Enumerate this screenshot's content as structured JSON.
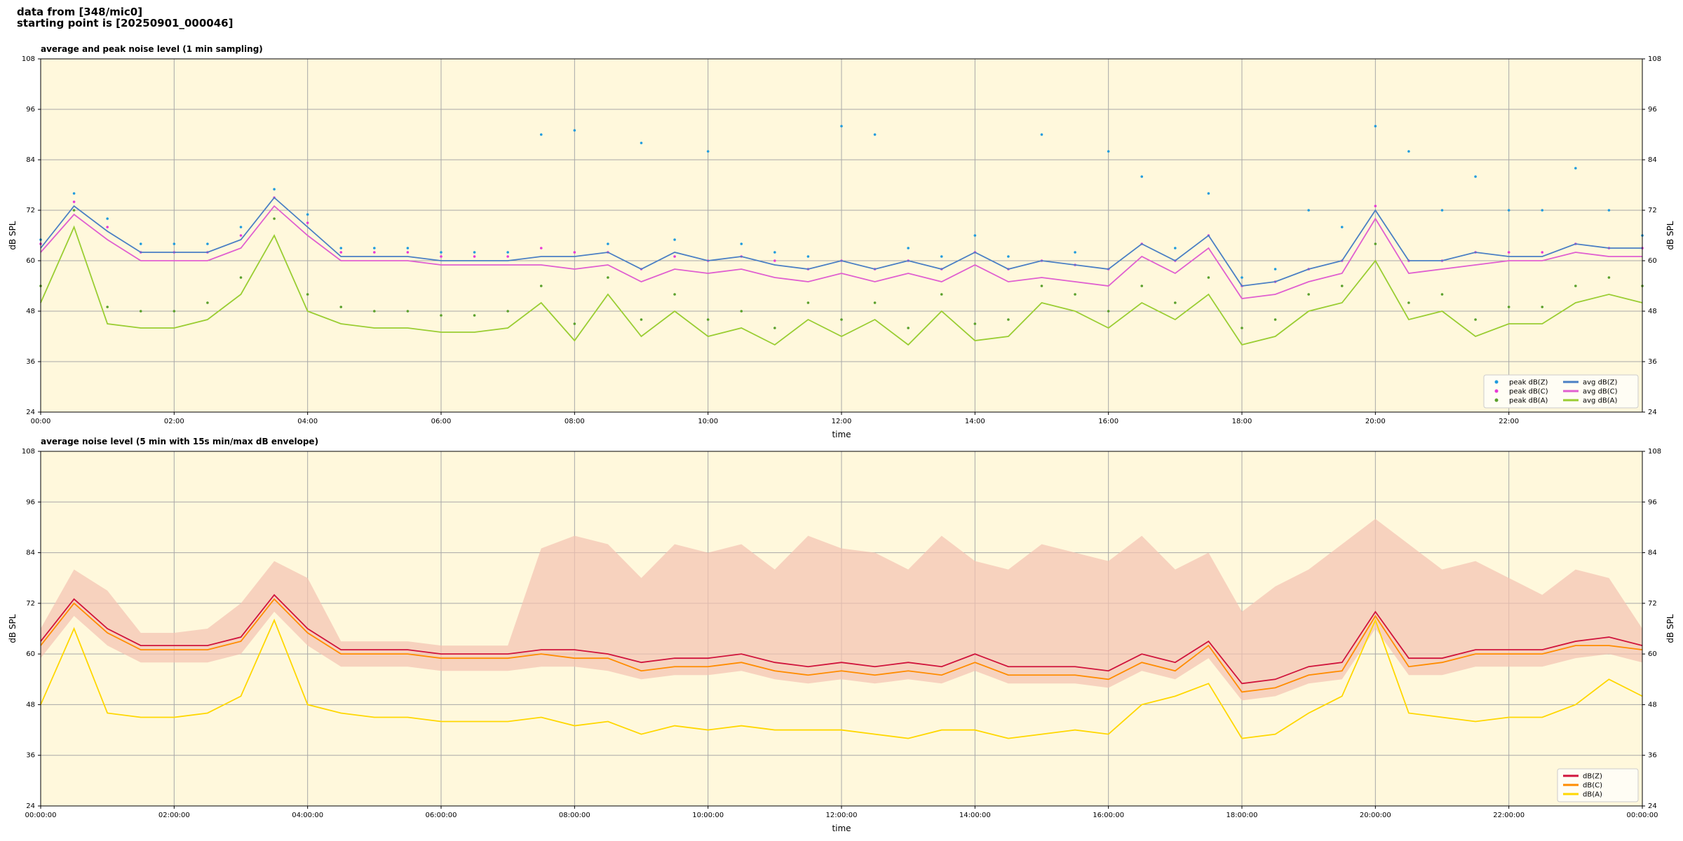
{
  "header": {
    "lines": [
      "data from [348/mic0]",
      "starting point is [20250901_000046]"
    ]
  },
  "chart_data": [
    {
      "type": "line",
      "title": "average and peak noise level (1 min sampling)",
      "x_label": "time",
      "y_label": "dB SPL",
      "x": [
        0,
        0.5,
        1,
        1.5,
        2,
        2.5,
        3,
        3.5,
        4,
        4.5,
        5,
        5.5,
        6,
        6.5,
        7,
        7.5,
        8,
        8.5,
        9,
        9.5,
        10,
        10.5,
        11,
        11.5,
        12,
        12.5,
        13,
        13.5,
        14,
        14.5,
        15,
        15.5,
        16,
        16.5,
        17,
        17.5,
        18,
        18.5,
        19,
        19.5,
        20,
        20.5,
        21,
        21.5,
        22,
        22.5,
        23,
        23.5,
        24
      ],
      "xlim": [
        0,
        24
      ],
      "xticks": [
        {
          "value": 0,
          "label": "00:00"
        },
        {
          "value": 2,
          "label": "02:00"
        },
        {
          "value": 4,
          "label": "04:00"
        },
        {
          "value": 6,
          "label": "06:00"
        },
        {
          "value": 8,
          "label": "08:00"
        },
        {
          "value": 10,
          "label": "10:00"
        },
        {
          "value": 12,
          "label": "12:00"
        },
        {
          "value": 14,
          "label": "14:00"
        },
        {
          "value": 16,
          "label": "16:00"
        },
        {
          "value": 18,
          "label": "18:00"
        },
        {
          "value": 20,
          "label": "20:00"
        },
        {
          "value": 22,
          "label": "22:00"
        }
      ],
      "ylim": [
        24,
        108
      ],
      "yticks": [
        24,
        36,
        48,
        60,
        72,
        84,
        96,
        108
      ],
      "grid": true,
      "background": "#fff8dc",
      "legend": {
        "position": "lower right",
        "columns": 2
      },
      "series": [
        {
          "name": "peak dB(Z)",
          "type": "scatter",
          "color": "#1f9bde",
          "values": [
            65,
            76,
            70,
            64,
            64,
            64,
            68,
            77,
            71,
            63,
            63,
            63,
            62,
            62,
            62,
            90,
            91,
            64,
            88,
            65,
            86,
            64,
            62,
            61,
            92,
            90,
            63,
            61,
            66,
            61,
            90,
            62,
            86,
            80,
            63,
            76,
            56,
            58,
            72,
            68,
            92,
            86,
            72,
            80,
            72,
            72,
            82,
            72,
            66
          ]
        },
        {
          "name": "peak dB(C)",
          "type": "scatter",
          "color": "#e83ad6",
          "values": [
            64,
            74,
            68,
            62,
            62,
            62,
            66,
            75,
            69,
            62,
            62,
            62,
            61,
            61,
            61,
            63,
            62,
            62,
            58,
            61,
            60,
            61,
            60,
            58,
            60,
            58,
            60,
            58,
            62,
            58,
            60,
            59,
            58,
            64,
            60,
            66,
            54,
            55,
            58,
            60,
            73,
            60,
            60,
            62,
            62,
            62,
            64,
            63,
            63
          ]
        },
        {
          "name": "peak dB(A)",
          "type": "scatter",
          "color": "#5aa02c",
          "values": [
            54,
            72,
            49,
            48,
            48,
            50,
            56,
            70,
            52,
            49,
            48,
            48,
            47,
            47,
            48,
            54,
            45,
            56,
            46,
            52,
            46,
            48,
            44,
            50,
            46,
            50,
            44,
            52,
            45,
            46,
            54,
            52,
            48,
            54,
            50,
            56,
            44,
            46,
            52,
            54,
            64,
            50,
            52,
            46,
            49,
            49,
            54,
            56,
            54
          ]
        },
        {
          "name": "avg dB(Z)",
          "type": "line",
          "color": "#4a7fc4",
          "values": [
            63,
            73,
            67,
            62,
            62,
            62,
            65,
            75,
            68,
            61,
            61,
            61,
            60,
            60,
            60,
            61,
            61,
            62,
            58,
            62,
            60,
            61,
            59,
            58,
            60,
            58,
            60,
            58,
            62,
            58,
            60,
            59,
            58,
            64,
            60,
            66,
            54,
            55,
            58,
            60,
            72,
            60,
            60,
            62,
            61,
            61,
            64,
            63,
            63
          ]
        },
        {
          "name": "avg dB(C)",
          "type": "line",
          "color": "#e05fd0",
          "values": [
            62,
            71,
            65,
            60,
            60,
            60,
            63,
            73,
            66,
            60,
            60,
            60,
            59,
            59,
            59,
            59,
            58,
            59,
            55,
            58,
            57,
            58,
            56,
            55,
            57,
            55,
            57,
            55,
            59,
            55,
            56,
            55,
            54,
            61,
            57,
            63,
            51,
            52,
            55,
            57,
            70,
            57,
            58,
            59,
            60,
            60,
            62,
            61,
            61
          ]
        },
        {
          "name": "avg dB(A)",
          "type": "line",
          "color": "#9acd32",
          "values": [
            50,
            68,
            45,
            44,
            44,
            46,
            52,
            66,
            48,
            45,
            44,
            44,
            43,
            43,
            44,
            50,
            41,
            52,
            42,
            48,
            42,
            44,
            40,
            46,
            42,
            46,
            40,
            48,
            41,
            42,
            50,
            48,
            44,
            50,
            46,
            52,
            40,
            42,
            48,
            50,
            60,
            46,
            48,
            42,
            45,
            45,
            50,
            52,
            50
          ]
        }
      ]
    },
    {
      "type": "line",
      "title": "average noise level (5 min with 15s min/max dB envelope)",
      "x_label": "time",
      "y_label": "dB SPL",
      "x": [
        0,
        0.5,
        1,
        1.5,
        2,
        2.5,
        3,
        3.5,
        4,
        4.5,
        5,
        5.5,
        6,
        6.5,
        7,
        7.5,
        8,
        8.5,
        9,
        9.5,
        10,
        10.5,
        11,
        11.5,
        12,
        12.5,
        13,
        13.5,
        14,
        14.5,
        15,
        15.5,
        16,
        16.5,
        17,
        17.5,
        18,
        18.5,
        19,
        19.5,
        20,
        20.5,
        21,
        21.5,
        22,
        22.5,
        23,
        23.5,
        24
      ],
      "xlim": [
        0,
        24
      ],
      "xticks": [
        {
          "value": 0,
          "label": "00:00:00"
        },
        {
          "value": 2,
          "label": "02:00:00"
        },
        {
          "value": 4,
          "label": "04:00:00"
        },
        {
          "value": 6,
          "label": "06:00:00"
        },
        {
          "value": 8,
          "label": "08:00:00"
        },
        {
          "value": 10,
          "label": "10:00:00"
        },
        {
          "value": 12,
          "label": "12:00:00"
        },
        {
          "value": 14,
          "label": "14:00:00"
        },
        {
          "value": 16,
          "label": "16:00:00"
        },
        {
          "value": 18,
          "label": "18:00:00"
        },
        {
          "value": 20,
          "label": "20:00:00"
        },
        {
          "value": 22,
          "label": "22:00:00"
        },
        {
          "value": 24,
          "label": "00:00:00"
        }
      ],
      "ylim": [
        24,
        108
      ],
      "yticks": [
        24,
        36,
        48,
        60,
        72,
        84,
        96,
        108
      ],
      "grid": true,
      "background": "#fff8dc",
      "legend": {
        "position": "lower right",
        "columns": 1
      },
      "envelope": {
        "color": "#f4c2b0",
        "max": [
          66,
          80,
          75,
          65,
          65,
          66,
          72,
          82,
          78,
          63,
          63,
          63,
          62,
          62,
          62,
          85,
          88,
          86,
          78,
          86,
          84,
          86,
          80,
          88,
          85,
          84,
          80,
          88,
          82,
          80,
          86,
          84,
          82,
          88,
          80,
          84,
          70,
          76,
          80,
          86,
          92,
          86,
          80,
          82,
          78,
          74,
          80,
          78,
          66
        ],
        "min": [
          59,
          69,
          62,
          58,
          58,
          58,
          60,
          70,
          62,
          57,
          57,
          57,
          56,
          56,
          56,
          57,
          57,
          56,
          54,
          55,
          55,
          56,
          54,
          53,
          54,
          53,
          54,
          53,
          56,
          53,
          53,
          53,
          52,
          56,
          54,
          59,
          49,
          50,
          53,
          54,
          66,
          55,
          55,
          57,
          57,
          57,
          59,
          60,
          58
        ]
      },
      "series": [
        {
          "name": "dB(Z)",
          "type": "line",
          "color": "#d0143c",
          "values": [
            63,
            73,
            66,
            62,
            62,
            62,
            64,
            74,
            66,
            61,
            61,
            61,
            60,
            60,
            60,
            61,
            61,
            60,
            58,
            59,
            59,
            60,
            58,
            57,
            58,
            57,
            58,
            57,
            60,
            57,
            57,
            57,
            56,
            60,
            58,
            63,
            53,
            54,
            57,
            58,
            70,
            59,
            59,
            61,
            61,
            61,
            63,
            64,
            62
          ]
        },
        {
          "name": "dB(C)",
          "type": "line",
          "color": "#ff8c00",
          "values": [
            62,
            72,
            65,
            61,
            61,
            61,
            63,
            73,
            65,
            60,
            60,
            60,
            59,
            59,
            59,
            60,
            59,
            59,
            56,
            57,
            57,
            58,
            56,
            55,
            56,
            55,
            56,
            55,
            58,
            55,
            55,
            55,
            54,
            58,
            56,
            62,
            51,
            52,
            55,
            56,
            69,
            57,
            58,
            60,
            60,
            60,
            62,
            62,
            61
          ]
        },
        {
          "name": "dB(A)",
          "type": "line",
          "color": "#ffd700",
          "values": [
            48,
            66,
            46,
            45,
            45,
            46,
            50,
            68,
            48,
            46,
            45,
            45,
            44,
            44,
            44,
            45,
            43,
            44,
            41,
            43,
            42,
            43,
            42,
            42,
            42,
            41,
            40,
            42,
            42,
            40,
            41,
            42,
            41,
            48,
            50,
            53,
            40,
            41,
            46,
            50,
            68,
            46,
            45,
            44,
            45,
            45,
            48,
            54,
            50
          ]
        }
      ]
    }
  ]
}
